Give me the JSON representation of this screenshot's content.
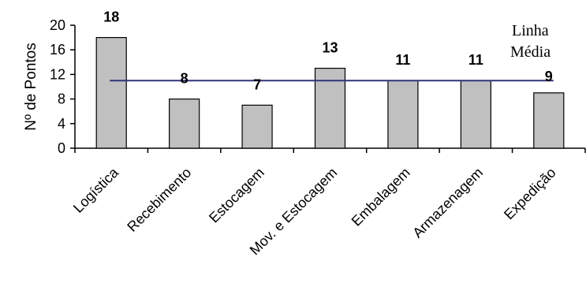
{
  "chart_data": {
    "type": "bar",
    "ylabel": "Nº de Pontos",
    "xlabel": "",
    "title": "",
    "categories": [
      "Logística",
      "Recebimento",
      "Estocagem",
      "Mov. e Estocagem",
      "Embalagem",
      "Armazenagem",
      "Expedição"
    ],
    "values": [
      18,
      8,
      7,
      13,
      11,
      11,
      9
    ],
    "data_labels": [
      "18",
      "8",
      "7",
      "13",
      "11",
      "11",
      "9"
    ],
    "ylim": [
      0,
      20
    ],
    "yticks": [
      "0",
      "4",
      "8",
      "12",
      "16",
      "20"
    ],
    "grid": false,
    "mean_line": {
      "value": 11,
      "label_line1": "Linha",
      "label_line2": "Média",
      "color": "#33337a"
    },
    "bar_color": "#c0c0c0",
    "bar_edge_color": "#000000"
  }
}
